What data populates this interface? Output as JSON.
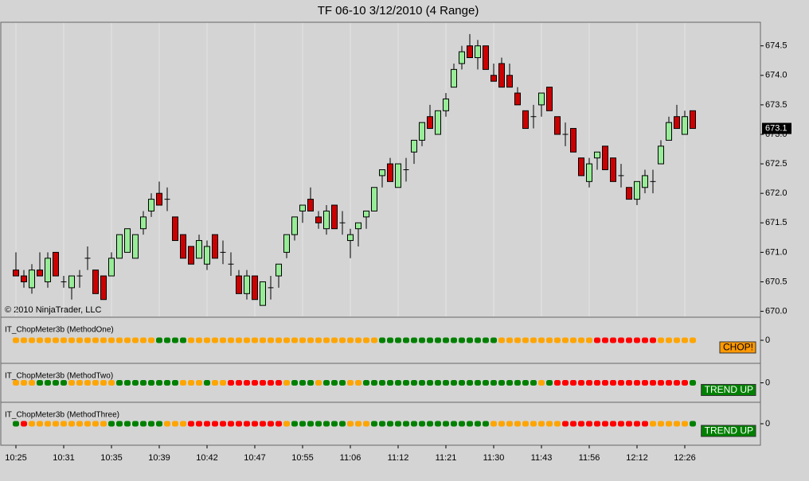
{
  "chart_data": [
    {
      "type": "candlestick",
      "title": "TF 06-10  3/12/2010 (4 Range)",
      "annotation": "© 2010 NinjaTrader, LLC",
      "categories": [
        "10:25",
        null,
        null,
        null,
        null,
        null,
        "10:31",
        null,
        null,
        null,
        null,
        null,
        "10:35",
        null,
        null,
        null,
        null,
        null,
        "10:39",
        null,
        null,
        null,
        null,
        null,
        "10:42",
        null,
        null,
        null,
        null,
        null,
        "10:47",
        null,
        null,
        null,
        null,
        null,
        "10:55",
        null,
        null,
        null,
        null,
        null,
        "11:06",
        null,
        null,
        null,
        null,
        null,
        "11:12",
        null,
        null,
        null,
        null,
        null,
        "11:21",
        null,
        null,
        null,
        null,
        null,
        "11:30",
        null,
        null,
        null,
        null,
        null,
        "11:43",
        null,
        null,
        null,
        null,
        null,
        "11:56",
        null,
        null,
        null,
        null,
        null,
        "12:12",
        null,
        null,
        null,
        null,
        null,
        "12:26",
        null
      ],
      "open": [
        670.7,
        670.6,
        670.4,
        670.7,
        670.5,
        671.0,
        670.5,
        670.4,
        670.6,
        670.9,
        670.7,
        670.6,
        670.6,
        670.9,
        671.0,
        670.9,
        671.4,
        671.7,
        672.0,
        671.9,
        671.6,
        671.3,
        671.1,
        670.9,
        670.8,
        671.3,
        671.0,
        670.8,
        670.6,
        670.3,
        670.6,
        670.1,
        670.4,
        670.6,
        671.0,
        671.3,
        671.7,
        671.9,
        671.6,
        671.4,
        671.8,
        671.5,
        671.2,
        671.4,
        671.6,
        671.7,
        672.3,
        672.5,
        672.1,
        672.4,
        672.7,
        672.9,
        673.3,
        673.0,
        673.4,
        673.8,
        674.2,
        674.5,
        674.3,
        674.5,
        674.0,
        674.2,
        674.0,
        673.7,
        673.4,
        673.3,
        673.5,
        673.8,
        673.3,
        673.0,
        673.1,
        672.6,
        672.2,
        672.6,
        672.8,
        672.6,
        672.3,
        672.1,
        671.9,
        672.1,
        672.2,
        672.5,
        672.9,
        673.3,
        673.0,
        673.4
      ],
      "high": [
        671.0,
        670.7,
        670.8,
        671.0,
        671.0,
        671.0,
        670.6,
        670.6,
        670.7,
        671.1,
        670.7,
        670.6,
        671.0,
        671.3,
        671.4,
        671.3,
        671.7,
        672.0,
        672.2,
        672.1,
        671.6,
        671.3,
        671.1,
        671.3,
        671.2,
        671.3,
        671.2,
        671.0,
        670.7,
        670.7,
        670.6,
        670.5,
        670.6,
        670.8,
        671.3,
        671.6,
        671.8,
        672.1,
        671.7,
        671.8,
        671.8,
        671.7,
        671.4,
        671.5,
        671.7,
        672.1,
        672.4,
        672.6,
        672.5,
        672.6,
        672.9,
        673.2,
        673.5,
        673.4,
        673.7,
        674.2,
        674.5,
        674.7,
        674.6,
        674.5,
        674.2,
        674.3,
        674.2,
        673.8,
        673.4,
        673.5,
        673.7,
        673.8,
        673.3,
        673.2,
        673.1,
        672.6,
        672.6,
        672.7,
        672.8,
        672.6,
        672.5,
        672.1,
        672.2,
        672.4,
        672.4,
        672.9,
        673.3,
        673.5,
        673.4,
        673.4
      ],
      "low": [
        670.6,
        670.4,
        670.3,
        670.6,
        670.4,
        670.6,
        670.4,
        670.2,
        670.4,
        670.7,
        670.3,
        670.2,
        670.6,
        670.9,
        671.0,
        670.9,
        671.3,
        671.6,
        671.8,
        671.7,
        671.2,
        670.9,
        670.8,
        670.9,
        670.7,
        670.9,
        670.8,
        670.6,
        670.3,
        670.2,
        670.2,
        670.1,
        670.2,
        670.4,
        670.9,
        671.2,
        671.5,
        671.7,
        671.4,
        671.3,
        671.4,
        671.3,
        670.9,
        671.1,
        671.4,
        671.7,
        672.1,
        672.2,
        672.1,
        672.2,
        672.5,
        672.8,
        673.1,
        673.0,
        673.3,
        673.8,
        674.1,
        674.3,
        674.1,
        674.1,
        673.9,
        673.8,
        673.8,
        673.5,
        673.1,
        673.1,
        673.3,
        673.4,
        673.0,
        672.8,
        672.7,
        672.3,
        672.1,
        672.4,
        672.4,
        672.2,
        672.1,
        671.9,
        671.8,
        672.0,
        672.0,
        672.5,
        672.9,
        673.1,
        673.0,
        673.1
      ],
      "close": [
        670.6,
        670.5,
        670.7,
        670.6,
        670.9,
        670.6,
        670.5,
        670.6,
        670.6,
        670.9,
        670.3,
        670.2,
        670.9,
        671.3,
        671.4,
        671.3,
        671.6,
        671.9,
        671.8,
        671.9,
        671.2,
        670.9,
        670.8,
        671.2,
        671.1,
        670.9,
        671.0,
        670.8,
        670.3,
        670.6,
        670.2,
        670.5,
        670.4,
        670.8,
        671.3,
        671.6,
        671.8,
        671.7,
        671.5,
        671.7,
        671.4,
        671.5,
        671.3,
        671.5,
        671.7,
        672.1,
        672.4,
        672.2,
        672.5,
        672.4,
        672.9,
        673.2,
        673.1,
        673.4,
        673.6,
        674.1,
        674.4,
        674.3,
        674.5,
        674.1,
        673.9,
        673.8,
        673.8,
        673.5,
        673.1,
        673.3,
        673.7,
        673.4,
        673.0,
        673.0,
        672.7,
        672.3,
        672.5,
        672.7,
        672.4,
        672.2,
        672.3,
        671.9,
        672.2,
        672.3,
        672.2,
        672.8,
        673.2,
        673.1,
        673.3,
        673.1
      ],
      "up_color": "#98ec98",
      "down_color": "#cc0000",
      "ylim": [
        669.9,
        674.9
      ],
      "yticks": [
        {
          "value": 670,
          "label": "670.0"
        },
        670.5,
        {
          "value": 671,
          "label": "671.0"
        },
        671.5,
        {
          "value": 672,
          "label": "672.0"
        },
        672.5,
        {
          "value": 673,
          "label": "673.0"
        },
        673.5,
        {
          "value": 674,
          "label": "674.0"
        },
        674.5
      ],
      "grid": true
    },
    {
      "type": "dots",
      "title": "IT_ChopMeter3b (MethodOne)",
      "status": "CHOP!",
      "status_color": "#ff9900",
      "status_text_color": "#000000",
      "ylim": [
        -1,
        1
      ],
      "yticks": [
        0
      ],
      "values": [
        0,
        0,
        0,
        0,
        0,
        0,
        0,
        0,
        0,
        0,
        0,
        0,
        0,
        0,
        0,
        0,
        0,
        0,
        0,
        0,
        0,
        0,
        0,
        0,
        0,
        0,
        0,
        0,
        0,
        0,
        0,
        0,
        0,
        0,
        0,
        0,
        0,
        0,
        0,
        0,
        0,
        0,
        0,
        0,
        0,
        0,
        0,
        0,
        0,
        0,
        0,
        0,
        0,
        0,
        0,
        0,
        0,
        0,
        0,
        0,
        0,
        0,
        0,
        0,
        0,
        0,
        0,
        0,
        0,
        0,
        0,
        0,
        0,
        0,
        0,
        0,
        0,
        0,
        0,
        0,
        0,
        0,
        0,
        0,
        0,
        0
      ],
      "colors": [
        "orange",
        "orange",
        "orange",
        "orange",
        "orange",
        "orange",
        "orange",
        "orange",
        "orange",
        "orange",
        "orange",
        "orange",
        "orange",
        "orange",
        "orange",
        "orange",
        "orange",
        "orange",
        "green",
        "green",
        "green",
        "green",
        "orange",
        "orange",
        "orange",
        "orange",
        "orange",
        "orange",
        "orange",
        "orange",
        "orange",
        "orange",
        "orange",
        "orange",
        "orange",
        "orange",
        "orange",
        "orange",
        "orange",
        "orange",
        "orange",
        "orange",
        "orange",
        "orange",
        "orange",
        "orange",
        "green",
        "green",
        "green",
        "green",
        "green",
        "green",
        "green",
        "green",
        "green",
        "green",
        "green",
        "green",
        "green",
        "green",
        "green",
        "orange",
        "orange",
        "orange",
        "orange",
        "orange",
        "orange",
        "orange",
        "orange",
        "orange",
        "orange",
        "orange",
        "orange",
        "red",
        "red",
        "red",
        "red",
        "red",
        "red",
        "red",
        "red",
        "orange",
        "orange",
        "orange",
        "orange",
        "orange"
      ]
    },
    {
      "type": "dots",
      "title": "IT_ChopMeter3b (MethodTwo)",
      "status": "TREND UP",
      "status_color": "#008000",
      "status_text_color": "#ffffff",
      "ylim": [
        -1,
        1
      ],
      "yticks": [
        0
      ],
      "values": [
        0,
        0,
        0,
        0,
        0,
        0,
        0,
        0,
        0,
        0,
        0,
        0,
        0,
        0,
        0,
        0,
        0,
        0,
        0,
        0,
        0,
        0,
        0,
        0,
        0,
        0,
        0,
        0,
        0,
        0,
        0,
        0,
        0,
        0,
        0,
        0,
        0,
        0,
        0,
        0,
        0,
        0,
        0,
        0,
        0,
        0,
        0,
        0,
        0,
        0,
        0,
        0,
        0,
        0,
        0,
        0,
        0,
        0,
        0,
        0,
        0,
        0,
        0,
        0,
        0,
        0,
        0,
        0,
        0,
        0,
        0,
        0,
        0,
        0,
        0,
        0,
        0,
        0,
        0,
        0,
        0,
        0,
        0,
        0,
        0,
        0
      ],
      "colors": [
        "orange",
        "orange",
        "orange",
        "green",
        "green",
        "green",
        "green",
        "orange",
        "orange",
        "orange",
        "orange",
        "orange",
        "orange",
        "green",
        "green",
        "green",
        "green",
        "green",
        "green",
        "green",
        "green",
        "orange",
        "orange",
        "orange",
        "green",
        "orange",
        "orange",
        "red",
        "red",
        "red",
        "red",
        "red",
        "red",
        "red",
        "orange",
        "green",
        "green",
        "green",
        "orange",
        "green",
        "green",
        "green",
        "orange",
        "orange",
        "green",
        "green",
        "green",
        "green",
        "green",
        "green",
        "green",
        "green",
        "green",
        "green",
        "green",
        "green",
        "green",
        "green",
        "green",
        "green",
        "green",
        "green",
        "green",
        "green",
        "green",
        "green",
        "orange",
        "green",
        "red",
        "red",
        "red",
        "red",
        "red",
        "red",
        "red",
        "red",
        "red",
        "red",
        "red",
        "red",
        "red",
        "red",
        "red",
        "red",
        "red",
        "green"
      ]
    },
    {
      "type": "dots",
      "title": "IT_ChopMeter3b (MethodThree)",
      "status": "TREND UP",
      "status_color": "#008000",
      "status_text_color": "#ffffff",
      "ylim": [
        -1,
        1
      ],
      "yticks": [
        0
      ],
      "values": [
        0,
        0,
        0,
        0,
        0,
        0,
        0,
        0,
        0,
        0,
        0,
        0,
        0,
        0,
        0,
        0,
        0,
        0,
        0,
        0,
        0,
        0,
        0,
        0,
        0,
        0,
        0,
        0,
        0,
        0,
        0,
        0,
        0,
        0,
        0,
        0,
        0,
        0,
        0,
        0,
        0,
        0,
        0,
        0,
        0,
        0,
        0,
        0,
        0,
        0,
        0,
        0,
        0,
        0,
        0,
        0,
        0,
        0,
        0,
        0,
        0,
        0,
        0,
        0,
        0,
        0,
        0,
        0,
        0,
        0,
        0,
        0,
        0,
        0,
        0,
        0,
        0,
        0,
        0,
        0,
        0,
        0,
        0,
        0,
        0,
        0
      ],
      "colors": [
        "green",
        "red",
        "orange",
        "orange",
        "orange",
        "orange",
        "orange",
        "orange",
        "orange",
        "orange",
        "orange",
        "orange",
        "green",
        "green",
        "green",
        "green",
        "green",
        "green",
        "green",
        "orange",
        "orange",
        "orange",
        "red",
        "red",
        "red",
        "red",
        "red",
        "red",
        "red",
        "red",
        "red",
        "red",
        "red",
        "red",
        "orange",
        "green",
        "green",
        "green",
        "green",
        "green",
        "green",
        "green",
        "orange",
        "orange",
        "orange",
        "green",
        "green",
        "green",
        "green",
        "green",
        "green",
        "green",
        "green",
        "green",
        "green",
        "green",
        "green",
        "green",
        "green",
        "green",
        "orange",
        "orange",
        "orange",
        "orange",
        "orange",
        "orange",
        "orange",
        "orange",
        "orange",
        "red",
        "red",
        "red",
        "red",
        "red",
        "red",
        "red",
        "red",
        "red",
        "red",
        "red",
        "orange",
        "orange",
        "orange",
        "orange",
        "orange",
        "green"
      ]
    }
  ]
}
